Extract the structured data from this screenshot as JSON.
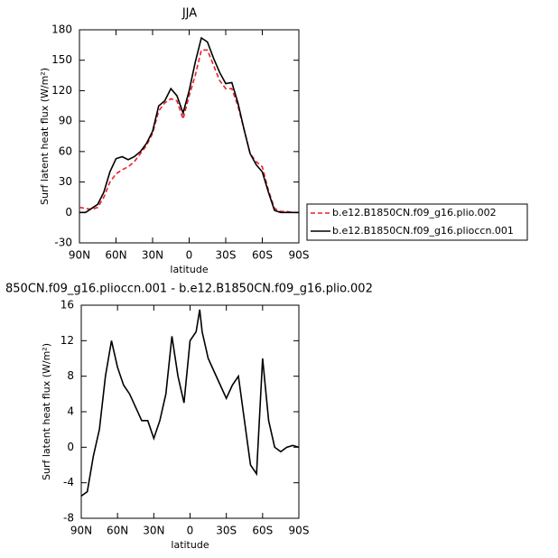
{
  "chart_data": [
    {
      "type": "line",
      "title": "JJA",
      "x_label": "latitude",
      "y_label": "Surf latent heat flux (W/m²)",
      "x": [
        90,
        85,
        80,
        75,
        70,
        65,
        60,
        55,
        50,
        45,
        40,
        35,
        30,
        25,
        20,
        15,
        10,
        5,
        0,
        -5,
        -10,
        -15,
        -20,
        -25,
        -30,
        -35,
        -40,
        -45,
        -50,
        -55,
        -60,
        -65,
        -70,
        -75,
        -80,
        -85,
        -90
      ],
      "series": [
        {
          "name": "b.e12.B1850CN.f09_g16.plio.002",
          "color": "#e8202a",
          "dash": true,
          "values": [
            5,
            4,
            3,
            5,
            15,
            30,
            38,
            42,
            45,
            50,
            58,
            66,
            78,
            100,
            108,
            112,
            110,
            92,
            115,
            135,
            160,
            160,
            145,
            130,
            122,
            122,
            105,
            82,
            58,
            50,
            45,
            22,
            4,
            1,
            1,
            0,
            0
          ]
        },
        {
          "name": "b.e12.B1850CN.f09_g16.plioccn.001",
          "color": "#000000",
          "dash": false,
          "values": [
            0,
            0,
            4,
            8,
            20,
            40,
            53,
            55,
            52,
            55,
            60,
            68,
            80,
            105,
            110,
            122,
            115,
            98,
            120,
            148,
            172,
            168,
            152,
            138,
            127,
            128,
            108,
            82,
            58,
            47,
            40,
            20,
            2,
            0,
            0,
            0,
            0
          ]
        }
      ],
      "xlim": [
        90,
        -90
      ],
      "xticks": [
        {
          "value": 90,
          "label": "90N"
        },
        {
          "value": 60,
          "label": "60N"
        },
        {
          "value": 30,
          "label": "30N"
        },
        {
          "value": 0,
          "label": "0"
        },
        {
          "value": -30,
          "label": "30S"
        },
        {
          "value": -60,
          "label": "60S"
        },
        {
          "value": -90,
          "label": "90S"
        }
      ],
      "ylim": [
        -30,
        180
      ],
      "yticks": [
        -30,
        0,
        30,
        60,
        90,
        120,
        150,
        180
      ]
    },
    {
      "type": "line",
      "title": "850CN.f09_g16.plioccn.001 - b.e12.B1850CN.f09_g16.plio.002",
      "x_label": "latitude",
      "y_label": "Surf latent heat flux (W/m²)",
      "x": [
        90,
        85,
        80,
        75,
        70,
        65,
        60,
        55,
        50,
        45,
        40,
        35,
        30,
        25,
        20,
        15,
        10,
        5,
        0,
        -5,
        -8,
        -10,
        -15,
        -20,
        -25,
        -30,
        -35,
        -40,
        -45,
        -50,
        -55,
        -60,
        -65,
        -70,
        -75,
        -80,
        -85,
        -90
      ],
      "series": [
        {
          "color": "#000000",
          "values": [
            -5.5,
            -5,
            -1,
            2,
            8,
            12,
            9,
            7,
            6,
            4.5,
            3,
            3,
            1,
            3,
            6,
            12.5,
            8,
            5,
            12,
            13,
            15.5,
            13,
            10,
            8.5,
            7,
            5.5,
            7,
            8,
            3,
            -2,
            -3,
            10,
            3,
            0,
            -0.5,
            0,
            0.2,
            0
          ]
        }
      ],
      "xlim": [
        90,
        -90
      ],
      "xticks": [
        {
          "value": 90,
          "label": "90N"
        },
        {
          "value": 60,
          "label": "60N"
        },
        {
          "value": 30,
          "label": "30N"
        },
        {
          "value": 0,
          "label": "0"
        },
        {
          "value": -30,
          "label": "30S"
        },
        {
          "value": -60,
          "label": "60S"
        },
        {
          "value": -90,
          "label": "90S"
        }
      ],
      "ylim": [
        -8,
        16
      ],
      "yticks": [
        -8,
        -4,
        0,
        4,
        8,
        12,
        16
      ]
    }
  ]
}
